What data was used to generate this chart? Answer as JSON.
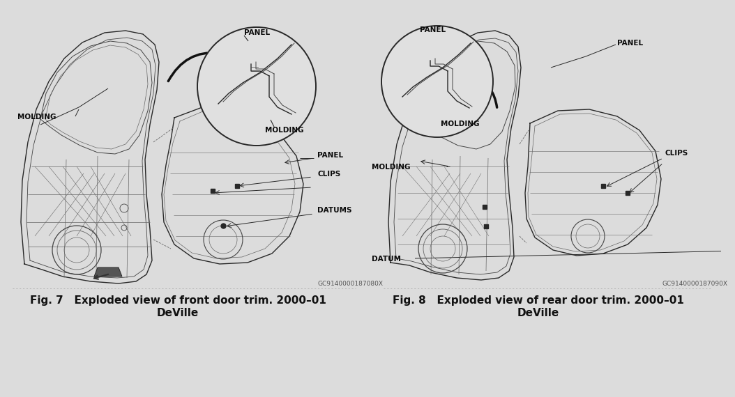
{
  "bg_color": [
    220,
    220,
    220
  ],
  "fig_width": 10.24,
  "fig_height": 5.51,
  "fig7_caption1": "Fig. 7   Exploded view of front door trim. 2000–01",
  "fig7_caption2": "DeVille",
  "fig7_partnum": "GC9140000187080X",
  "fig8_caption1": "Fig. 8   Exploded view of rear door trim. 2000–01",
  "fig8_caption2": "DeVille",
  "fig8_partnum": "GC9140000187090X",
  "label_color": [
    10,
    10,
    10
  ],
  "line_color": [
    60,
    60,
    60
  ],
  "draw_color": [
    40,
    40,
    40
  ],
  "bg_rgb": "#dcdcdc",
  "caption_color": "#111111"
}
